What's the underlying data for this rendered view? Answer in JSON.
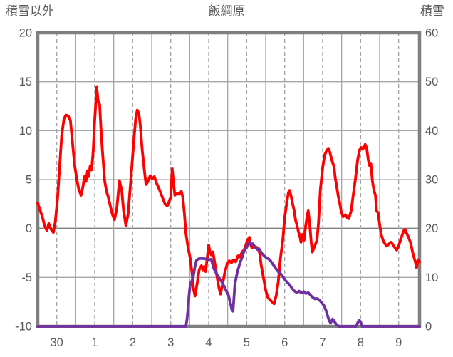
{
  "header": {
    "left_axis_title": "積雪以外",
    "chart_title": "飯綱原",
    "right_axis_title": "積雪"
  },
  "chart_data": {
    "type": "line",
    "title": "飯綱原",
    "legend": "none",
    "grid": true,
    "x_axis": {
      "labels": [
        "30",
        "1",
        "2",
        "3",
        "4",
        "5",
        "6",
        "7",
        "8",
        "9"
      ],
      "label_positions": [
        0,
        1,
        2,
        3,
        4,
        5,
        6,
        7,
        8,
        9
      ],
      "range": [
        -0.5,
        9.55
      ],
      "dashed_gridlines_at": [
        0,
        1,
        2,
        3,
        4,
        5,
        6,
        7,
        8,
        9
      ],
      "solid_gridlines_at": [
        0.5,
        1.5,
        2.5,
        3.5,
        4.5,
        5.5,
        6.5,
        7.5,
        8.5
      ]
    },
    "left_axis": {
      "title": "積雪以外",
      "min": -10,
      "max": 20,
      "ticks": [
        20,
        15,
        10,
        5,
        0,
        -5,
        -10
      ],
      "emphasized_line_at": 0
    },
    "right_axis": {
      "title": "積雪",
      "min": 0,
      "max": 60,
      "ticks": [
        60,
        50,
        40,
        30,
        20,
        10,
        0
      ]
    },
    "colors": {
      "red_series": "#FF0000",
      "purple_series": "#7030A0",
      "gridline": "#A6A6A6",
      "zero_line": "#808080",
      "frame": "#7F7F7F",
      "text": "#595959"
    },
    "series": [
      {
        "name": "積雪以外",
        "axis": "left",
        "color": "#FF0000",
        "points": [
          [
            -0.5,
            2.6
          ],
          [
            -0.38,
            1.2
          ],
          [
            -0.32,
            0.3
          ],
          [
            -0.26,
            -0.2
          ],
          [
            -0.21,
            0.5
          ],
          [
            -0.15,
            -0.1
          ],
          [
            -0.09,
            -0.4
          ],
          [
            -0.04,
            0.6
          ],
          [
            0.02,
            3
          ],
          [
            0.08,
            6.5
          ],
          [
            0.13,
            9.5
          ],
          [
            0.19,
            11.2
          ],
          [
            0.24,
            11.6
          ],
          [
            0.3,
            11.5
          ],
          [
            0.36,
            11
          ],
          [
            0.41,
            9
          ],
          [
            0.47,
            6.5
          ],
          [
            0.53,
            5
          ],
          [
            0.58,
            4
          ],
          [
            0.64,
            3.4
          ],
          [
            0.69,
            4.3
          ],
          [
            0.73,
            5.3
          ],
          [
            0.77,
            4.8
          ],
          [
            0.81,
            5.9
          ],
          [
            0.84,
            5.3
          ],
          [
            0.88,
            6.4
          ],
          [
            0.92,
            6
          ],
          [
            0.96,
            8
          ],
          [
            0.99,
            10.5
          ],
          [
            1.03,
            13
          ],
          [
            1.05,
            14.5
          ],
          [
            1.09,
            13
          ],
          [
            1.13,
            12.7
          ],
          [
            1.16,
            10.5
          ],
          [
            1.2,
            8
          ],
          [
            1.26,
            4.9
          ],
          [
            1.31,
            3.8
          ],
          [
            1.35,
            3.3
          ],
          [
            1.41,
            2.3
          ],
          [
            1.46,
            1.5
          ],
          [
            1.52,
            0.9
          ],
          [
            1.58,
            2
          ],
          [
            1.65,
            4.9
          ],
          [
            1.71,
            3.9
          ],
          [
            1.76,
            1.8
          ],
          [
            1.82,
            0.3
          ],
          [
            1.88,
            1.5
          ],
          [
            1.93,
            4
          ],
          [
            1.99,
            7
          ],
          [
            2.04,
            9.5
          ],
          [
            2.08,
            11.3
          ],
          [
            2.12,
            12.1
          ],
          [
            2.16,
            11.8
          ],
          [
            2.2,
            10.5
          ],
          [
            2.25,
            8
          ],
          [
            2.31,
            5.8
          ],
          [
            2.35,
            4.5
          ],
          [
            2.4,
            4.8
          ],
          [
            2.46,
            5.4
          ],
          [
            2.51,
            5.1
          ],
          [
            2.57,
            5.3
          ],
          [
            2.63,
            4.6
          ],
          [
            2.68,
            4.2
          ],
          [
            2.74,
            3.6
          ],
          [
            2.8,
            3
          ],
          [
            2.85,
            2.5
          ],
          [
            2.91,
            2.3
          ],
          [
            2.96,
            2.8
          ],
          [
            3,
            3.2
          ],
          [
            3.04,
            6.1
          ],
          [
            3.08,
            4.5
          ],
          [
            3.11,
            3.4
          ],
          [
            3.17,
            3.6
          ],
          [
            3.23,
            3.5
          ],
          [
            3.28,
            3.8
          ],
          [
            3.32,
            3.2
          ],
          [
            3.36,
            1.5
          ],
          [
            3.4,
            -0.5
          ],
          [
            3.45,
            -1.8
          ],
          [
            3.51,
            -3
          ],
          [
            3.56,
            -4.5
          ],
          [
            3.6,
            -6.2
          ],
          [
            3.64,
            -6.9
          ],
          [
            3.7,
            -5.5
          ],
          [
            3.75,
            -4.2
          ],
          [
            3.81,
            -3.8
          ],
          [
            3.85,
            -4.3
          ],
          [
            3.88,
            -3.9
          ],
          [
            3.92,
            -4.4
          ],
          [
            3.96,
            -3
          ],
          [
            4,
            -1.7
          ],
          [
            4.03,
            -2.3
          ],
          [
            4.07,
            -2.7
          ],
          [
            4.11,
            -2.4
          ],
          [
            4.15,
            -3.3
          ],
          [
            4.2,
            -4.5
          ],
          [
            4.26,
            -5.9
          ],
          [
            4.31,
            -6.7
          ],
          [
            4.37,
            -5.6
          ],
          [
            4.43,
            -4.4
          ],
          [
            4.48,
            -3.7
          ],
          [
            4.54,
            -3.3
          ],
          [
            4.6,
            -3.5
          ],
          [
            4.65,
            -3.2
          ],
          [
            4.71,
            -3.4
          ],
          [
            4.77,
            -2.8
          ],
          [
            4.82,
            -2.9
          ],
          [
            4.88,
            -2.4
          ],
          [
            4.93,
            -2.2
          ],
          [
            4.97,
            -1.8
          ],
          [
            5.01,
            -1.3
          ],
          [
            5.07,
            -0.9
          ],
          [
            5.1,
            -1.6
          ],
          [
            5.14,
            -2
          ],
          [
            5.2,
            -1.8
          ],
          [
            5.25,
            -1.9
          ],
          [
            5.31,
            -2.1
          ],
          [
            5.35,
            -2.7
          ],
          [
            5.38,
            -3.7
          ],
          [
            5.44,
            -5
          ],
          [
            5.5,
            -6.3
          ],
          [
            5.55,
            -7
          ],
          [
            5.61,
            -7.3
          ],
          [
            5.67,
            -7.5
          ],
          [
            5.72,
            -7.7
          ],
          [
            5.78,
            -6.8
          ],
          [
            5.83,
            -5.5
          ],
          [
            5.89,
            -3
          ],
          [
            5.95,
            -1.2
          ],
          [
            6,
            1.1
          ],
          [
            6.06,
            2.8
          ],
          [
            6.1,
            3.7
          ],
          [
            6.13,
            3.9
          ],
          [
            6.17,
            3.3
          ],
          [
            6.21,
            2.5
          ],
          [
            6.25,
            1.8
          ],
          [
            6.29,
            0.8
          ],
          [
            6.32,
            0.4
          ],
          [
            6.36,
            -0.3
          ],
          [
            6.4,
            -0.8
          ],
          [
            6.43,
            -1.4
          ],
          [
            6.47,
            -0.6
          ],
          [
            6.51,
            -1.2
          ],
          [
            6.55,
            0.2
          ],
          [
            6.59,
            1.2
          ],
          [
            6.62,
            1.8
          ],
          [
            6.66,
            0.4
          ],
          [
            6.7,
            -1.5
          ],
          [
            6.73,
            -2.4
          ],
          [
            6.77,
            -2
          ],
          [
            6.81,
            -1.6
          ],
          [
            6.85,
            -1.2
          ],
          [
            6.89,
            0.5
          ],
          [
            6.94,
            4
          ],
          [
            7,
            6.2
          ],
          [
            7.05,
            7.5
          ],
          [
            7.11,
            8
          ],
          [
            7.15,
            8.2
          ],
          [
            7.19,
            7.8
          ],
          [
            7.24,
            7
          ],
          [
            7.3,
            6.3
          ],
          [
            7.33,
            5.2
          ],
          [
            7.37,
            4.3
          ],
          [
            7.41,
            3.3
          ],
          [
            7.45,
            2.6
          ],
          [
            7.49,
            1.7
          ],
          [
            7.54,
            1.2
          ],
          [
            7.6,
            1.4
          ],
          [
            7.65,
            1.1
          ],
          [
            7.69,
            1
          ],
          [
            7.75,
            1.8
          ],
          [
            7.8,
            3.3
          ],
          [
            7.86,
            5
          ],
          [
            7.92,
            7
          ],
          [
            7.97,
            8
          ],
          [
            8.01,
            8.3
          ],
          [
            8.05,
            8.1
          ],
          [
            8.09,
            8.3
          ],
          [
            8.12,
            8.6
          ],
          [
            8.16,
            8.2
          ],
          [
            8.2,
            7
          ],
          [
            8.24,
            6.4
          ],
          [
            8.27,
            6.6
          ],
          [
            8.31,
            4.8
          ],
          [
            8.35,
            3.9
          ],
          [
            8.39,
            3.4
          ],
          [
            8.42,
            1.8
          ],
          [
            8.46,
            1.6
          ],
          [
            8.5,
            0.4
          ],
          [
            8.54,
            -0.6
          ],
          [
            8.59,
            -1.2
          ],
          [
            8.63,
            -1.5
          ],
          [
            8.69,
            -1.8
          ],
          [
            8.74,
            -1.6
          ],
          [
            8.8,
            -1.4
          ],
          [
            8.84,
            -1.6
          ],
          [
            8.87,
            -1.8
          ],
          [
            8.91,
            -2
          ],
          [
            8.95,
            -2.2
          ],
          [
            8.99,
            -1.9
          ],
          [
            9.04,
            -1.3
          ],
          [
            9.1,
            -0.6
          ],
          [
            9.14,
            -0.2
          ],
          [
            9.17,
            -0.1
          ],
          [
            9.21,
            -0.5
          ],
          [
            9.25,
            -0.8
          ],
          [
            9.29,
            -1.2
          ],
          [
            9.32,
            -1.5
          ],
          [
            9.36,
            -2.3
          ],
          [
            9.4,
            -2.9
          ],
          [
            9.44,
            -3.4
          ],
          [
            9.47,
            -4
          ],
          [
            9.51,
            -3.2
          ],
          [
            9.55,
            -3.4
          ]
        ]
      },
      {
        "name": "積雪",
        "axis": "right",
        "color": "#7030A0",
        "points": [
          [
            -0.5,
            0
          ],
          [
            3.4,
            0
          ],
          [
            3.43,
            1.5
          ],
          [
            3.46,
            4
          ],
          [
            3.49,
            7
          ],
          [
            3.52,
            8.8
          ],
          [
            3.56,
            9.3
          ],
          [
            3.6,
            10.5
          ],
          [
            3.64,
            12.3
          ],
          [
            3.68,
            13.5
          ],
          [
            3.73,
            13.8
          ],
          [
            3.81,
            13.9
          ],
          [
            3.9,
            13.8
          ],
          [
            4,
            13.6
          ],
          [
            4.07,
            13.7
          ],
          [
            4.13,
            11.9
          ],
          [
            4.2,
            10.8
          ],
          [
            4.28,
            9.8
          ],
          [
            4.35,
            9
          ],
          [
            4.41,
            8.1
          ],
          [
            4.47,
            7.1
          ],
          [
            4.52,
            6.4
          ],
          [
            4.58,
            4.5
          ],
          [
            4.61,
            3.4
          ],
          [
            4.64,
            3.1
          ],
          [
            4.69,
            8.6
          ],
          [
            4.75,
            11
          ],
          [
            4.82,
            12.9
          ],
          [
            4.88,
            14.1
          ],
          [
            4.93,
            15.4
          ],
          [
            5,
            16.1
          ],
          [
            5.07,
            17.2
          ],
          [
            5.12,
            16.8
          ],
          [
            5.16,
            16.9
          ],
          [
            5.22,
            16.2
          ],
          [
            5.28,
            15.7
          ],
          [
            5.33,
            15.8
          ],
          [
            5.4,
            14.9
          ],
          [
            5.47,
            14.3
          ],
          [
            5.55,
            13.9
          ],
          [
            5.61,
            13.6
          ],
          [
            5.67,
            12.9
          ],
          [
            5.72,
            12.4
          ],
          [
            5.78,
            11.7
          ],
          [
            5.84,
            11.1
          ],
          [
            5.9,
            10.7
          ],
          [
            5.96,
            10.1
          ],
          [
            6.02,
            9.4
          ],
          [
            6.08,
            8.9
          ],
          [
            6.14,
            8.4
          ],
          [
            6.2,
            7.7
          ],
          [
            6.26,
            7.2
          ],
          [
            6.32,
            6.9
          ],
          [
            6.38,
            7.2
          ],
          [
            6.44,
            6.8
          ],
          [
            6.5,
            7.1
          ],
          [
            6.56,
            6.7
          ],
          [
            6.62,
            6.9
          ],
          [
            6.68,
            6.4
          ],
          [
            6.74,
            5.9
          ],
          [
            6.8,
            5.6
          ],
          [
            6.86,
            5.7
          ],
          [
            6.92,
            5.3
          ],
          [
            6.98,
            4.8
          ],
          [
            7.04,
            4.2
          ],
          [
            7.09,
            3.2
          ],
          [
            7.13,
            2.2
          ],
          [
            7.17,
            1.2
          ],
          [
            7.21,
            0.7
          ],
          [
            7.26,
            1.5
          ],
          [
            7.31,
            1
          ],
          [
            7.36,
            0.4
          ],
          [
            7.43,
            0
          ],
          [
            7.88,
            0
          ],
          [
            7.92,
            0.7
          ],
          [
            7.96,
            1.3
          ],
          [
            8,
            0.9
          ],
          [
            8.04,
            0
          ],
          [
            9.55,
            0
          ]
        ]
      }
    ]
  }
}
